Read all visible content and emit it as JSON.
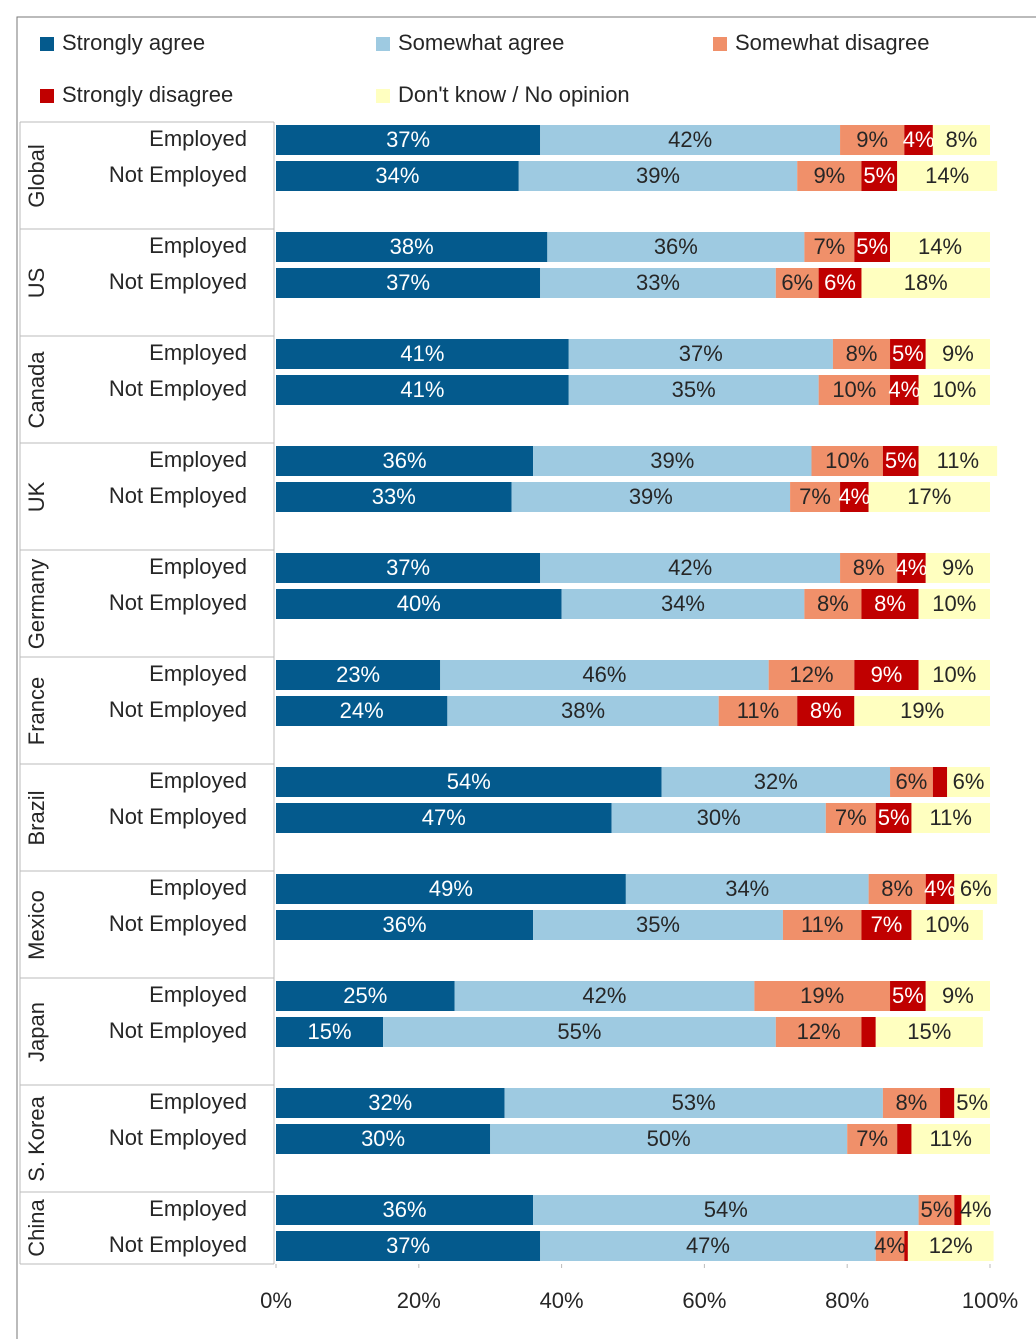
{
  "chart_data": {
    "type": "stacked-barh",
    "groups": [
      "Global",
      "US",
      "Canada",
      "UK",
      "Germany",
      "France",
      "Brazil",
      "Mexico",
      "Japan",
      "S. Korea",
      "China"
    ],
    "categories": [
      "Employed",
      "Not Employed",
      "Employed",
      "Not Employed",
      "Employed",
      "Not Employed",
      "Employed",
      "Not Employed",
      "Employed",
      "Not Employed",
      "Employed",
      "Not Employed",
      "Employed",
      "Not Employed",
      "Employed",
      "Not Employed",
      "Employed",
      "Not Employed",
      "Employed",
      "Not Employed",
      "Employed",
      "Not Employed"
    ],
    "series": [
      {
        "name": "Strongly agree",
        "color": "#045a8d",
        "values": [
          37,
          34,
          38,
          37,
          41,
          41,
          36,
          33,
          37,
          40,
          23,
          24,
          54,
          47,
          49,
          36,
          25,
          15,
          32,
          30,
          36,
          37
        ],
        "value_labels": [
          "37%",
          "34%",
          "38%",
          "37%",
          "41%",
          "41%",
          "36%",
          "33%",
          "37%",
          "40%",
          "23%",
          "24%",
          "54%",
          "47%",
          "49%",
          "36%",
          "25%",
          "15%",
          "32%",
          "30%",
          "36%",
          "37%"
        ]
      },
      {
        "name": "Somewhat agree",
        "color": "#9ecae1",
        "values": [
          42,
          39,
          36,
          33,
          37,
          35,
          39,
          39,
          42,
          34,
          46,
          38,
          32,
          30,
          34,
          35,
          42,
          55,
          53,
          50,
          54,
          47
        ],
        "value_labels": [
          "42%",
          "39%",
          "36%",
          "33%",
          "37%",
          "35%",
          "39%",
          "39%",
          "42%",
          "34%",
          "46%",
          "38%",
          "32%",
          "30%",
          "34%",
          "35%",
          "42%",
          "55%",
          "53%",
          "50%",
          "54%",
          "47%"
        ]
      },
      {
        "name": "Somewhat disagree",
        "color": "#f0906a",
        "values": [
          9,
          9,
          7,
          6,
          8,
          10,
          10,
          7,
          8,
          8,
          12,
          11,
          6,
          7,
          8,
          11,
          19,
          12,
          8,
          7,
          5,
          4
        ],
        "value_labels": [
          "9%",
          "9%",
          "7%",
          "6%",
          "8%",
          "10%",
          "10%",
          "7%",
          "8%",
          "8%",
          "12%",
          "11%",
          "6%",
          "7%",
          "8%",
          "11%",
          "19%",
          "12%",
          "8%",
          "7%",
          "5%",
          "4%"
        ]
      },
      {
        "name": "Strongly disagree",
        "color": "#c00000",
        "values": [
          4,
          5,
          5,
          6,
          5,
          4,
          5,
          4,
          4,
          8,
          9,
          8,
          2,
          5,
          4,
          7,
          5,
          2,
          2,
          2,
          1,
          0.5
        ],
        "value_labels": [
          "4%",
          "5%",
          "5%",
          "6%",
          "5%",
          "4%",
          "5%",
          "4%",
          "4%",
          "8%",
          "9%",
          "8%",
          null,
          "5%",
          "4%",
          "7%",
          "5%",
          null,
          null,
          null,
          null,
          null
        ]
      },
      {
        "name": "Don't know / No opinion",
        "color": "#ffffc0",
        "values": [
          8,
          14,
          14,
          18,
          9,
          10,
          11,
          17,
          9,
          10,
          10,
          19,
          6,
          11,
          6,
          10,
          9,
          15,
          5,
          11,
          4,
          12
        ],
        "value_labels": [
          "8%",
          "14%",
          "14%",
          "18%",
          "9%",
          "10%",
          "11%",
          "17%",
          "9%",
          "10%",
          "10%",
          "19%",
          "6%",
          "11%",
          "6%",
          "10%",
          "9%",
          "15%",
          "5%",
          "11%",
          "4%",
          "12%"
        ]
      }
    ],
    "xlim": [
      0,
      100
    ],
    "xticks": [
      {
        "value": 0,
        "label": "0%"
      },
      {
        "value": 20,
        "label": "20%"
      },
      {
        "value": 40,
        "label": "40%"
      },
      {
        "value": 60,
        "label": "60%"
      },
      {
        "value": 80,
        "label": "80%"
      },
      {
        "value": 100,
        "label": "100%"
      }
    ],
    "legend": "top"
  }
}
